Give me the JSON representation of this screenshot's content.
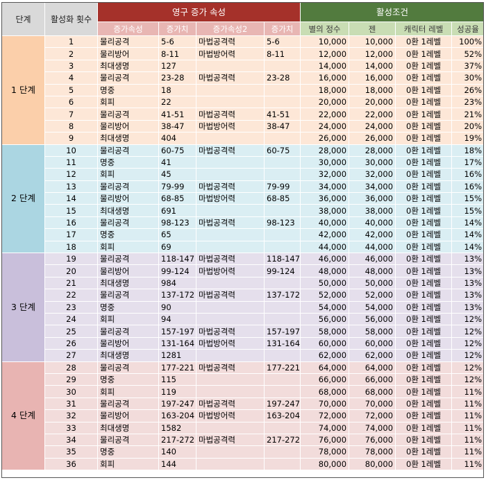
{
  "headers": {
    "stage": "단계",
    "count": "활성화 횟수",
    "group_attr": "영구 증가 속성",
    "group_cond": "활성조건",
    "attr1": "증가속성",
    "val1": "증가치",
    "attr2": "증가속성2",
    "val2": "증가치",
    "stars": "별의 정수",
    "zen": "젠",
    "level": "캐릭터 레벨",
    "rate": "성공율"
  },
  "stages": [
    "1 단계",
    "2 단계",
    "3 단계",
    "4 단계"
  ],
  "rows": [
    {
      "n": "1",
      "a1": "물리공격",
      "v1": "5-6",
      "a2": "마법공격력",
      "v2": "5-6",
      "stars": "10,000",
      "zen": "10,000",
      "level": "0환 1레벨",
      "rate": "100%"
    },
    {
      "n": "2",
      "a1": "물리방어",
      "v1": "8-11",
      "a2": "마법방어력",
      "v2": "8-11",
      "stars": "12,000",
      "zen": "12,000",
      "level": "0환 1레벨",
      "rate": "52%"
    },
    {
      "n": "3",
      "a1": "최대생명",
      "v1": "127",
      "a2": "",
      "v2": "",
      "stars": "14,000",
      "zen": "14,000",
      "level": "0환 1레벨",
      "rate": "37%"
    },
    {
      "n": "4",
      "a1": "물리공격",
      "v1": "23-28",
      "a2": "마법공격력",
      "v2": "23-28",
      "stars": "16,000",
      "zen": "16,000",
      "level": "0환 1레벨",
      "rate": "30%"
    },
    {
      "n": "5",
      "a1": "명중",
      "v1": "18",
      "a2": "",
      "v2": "",
      "stars": "18,000",
      "zen": "18,000",
      "level": "0환 1레벨",
      "rate": "26%"
    },
    {
      "n": "6",
      "a1": "회피",
      "v1": "22",
      "a2": "",
      "v2": "",
      "stars": "20,000",
      "zen": "20,000",
      "level": "0환 1레벨",
      "rate": "23%"
    },
    {
      "n": "7",
      "a1": "물리공격",
      "v1": "41-51",
      "a2": "마법공격력",
      "v2": "41-51",
      "stars": "22,000",
      "zen": "22,000",
      "level": "0환 1레벨",
      "rate": "21%"
    },
    {
      "n": "8",
      "a1": "물리방어",
      "v1": "38-47",
      "a2": "마법방어력",
      "v2": "38-47",
      "stars": "24,000",
      "zen": "24,000",
      "level": "0환 1레벨",
      "rate": "20%"
    },
    {
      "n": "9",
      "a1": "최대생명",
      "v1": "404",
      "a2": "",
      "v2": "",
      "stars": "26,000",
      "zen": "26,000",
      "level": "0환 1레벨",
      "rate": "19%"
    },
    {
      "n": "10",
      "a1": "물리공격",
      "v1": "60-75",
      "a2": "마법공격력",
      "v2": "60-75",
      "stars": "28,000",
      "zen": "28,000",
      "level": "0환 1레벨",
      "rate": "18%"
    },
    {
      "n": "11",
      "a1": "명중",
      "v1": "41",
      "a2": "",
      "v2": "",
      "stars": "30,000",
      "zen": "30,000",
      "level": "0환 1레벨",
      "rate": "17%"
    },
    {
      "n": "12",
      "a1": "회피",
      "v1": "45",
      "a2": "",
      "v2": "",
      "stars": "32,000",
      "zen": "32,000",
      "level": "0환 1레벨",
      "rate": "16%"
    },
    {
      "n": "13",
      "a1": "물리공격",
      "v1": "79-99",
      "a2": "마법공격력",
      "v2": "79-99",
      "stars": "34,000",
      "zen": "34,000",
      "level": "0환 1레벨",
      "rate": "16%"
    },
    {
      "n": "14",
      "a1": "물리방어",
      "v1": "68-85",
      "a2": "마법방어력",
      "v2": "68-85",
      "stars": "36,000",
      "zen": "36,000",
      "level": "0환 1레벨",
      "rate": "15%"
    },
    {
      "n": "15",
      "a1": "최대생명",
      "v1": "691",
      "a2": "",
      "v2": "",
      "stars": "38,000",
      "zen": "38,000",
      "level": "0환 1레벨",
      "rate": "15%"
    },
    {
      "n": "16",
      "a1": "물리공격",
      "v1": "98-123",
      "a2": "마법공격력",
      "v2": "98-123",
      "stars": "40,000",
      "zen": "40,000",
      "level": "0환 1레벨",
      "rate": "14%"
    },
    {
      "n": "17",
      "a1": "명중",
      "v1": "65",
      "a2": "",
      "v2": "",
      "stars": "42,000",
      "zen": "42,000",
      "level": "0환 1레벨",
      "rate": "14%"
    },
    {
      "n": "18",
      "a1": "회피",
      "v1": "69",
      "a2": "",
      "v2": "",
      "stars": "44,000",
      "zen": "44,000",
      "level": "0환 1레벨",
      "rate": "14%"
    },
    {
      "n": "19",
      "a1": "물리공격",
      "v1": "118-147",
      "a2": "마법공격력",
      "v2": "118-147",
      "stars": "46,000",
      "zen": "46,000",
      "level": "0환 1레벨",
      "rate": "13%"
    },
    {
      "n": "20",
      "a1": "물리방어",
      "v1": "99-124",
      "a2": "마법방어력",
      "v2": "99-124",
      "stars": "48,000",
      "zen": "48,000",
      "level": "0환 1레벨",
      "rate": "13%"
    },
    {
      "n": "21",
      "a1": "최대생명",
      "v1": "984",
      "a2": "",
      "v2": "",
      "stars": "50,000",
      "zen": "50,000",
      "level": "0환 1레벨",
      "rate": "13%"
    },
    {
      "n": "22",
      "a1": "물리공격",
      "v1": "137-172",
      "a2": "마법공격력",
      "v2": "137-172",
      "stars": "52,000",
      "zen": "52,000",
      "level": "0환 1레벨",
      "rate": "13%"
    },
    {
      "n": "23",
      "a1": "명중",
      "v1": "90",
      "a2": "",
      "v2": "",
      "stars": "54,000",
      "zen": "54,000",
      "level": "0환 1레벨",
      "rate": "13%"
    },
    {
      "n": "24",
      "a1": "회피",
      "v1": "94",
      "a2": "",
      "v2": "",
      "stars": "56,000",
      "zen": "56,000",
      "level": "0환 1레벨",
      "rate": "12%"
    },
    {
      "n": "25",
      "a1": "물리공격",
      "v1": "157-197",
      "a2": "마법공격력",
      "v2": "157-197",
      "stars": "58,000",
      "zen": "58,000",
      "level": "0환 1레벨",
      "rate": "12%"
    },
    {
      "n": "26",
      "a1": "물리방어",
      "v1": "131-164",
      "a2": "마법방어력",
      "v2": "131-164",
      "stars": "60,000",
      "zen": "60,000",
      "level": "0환 1레벨",
      "rate": "12%"
    },
    {
      "n": "27",
      "a1": "최대생명",
      "v1": "1281",
      "a2": "",
      "v2": "",
      "stars": "62,000",
      "zen": "62,000",
      "level": "0환 1레벨",
      "rate": "12%"
    },
    {
      "n": "28",
      "a1": "물리공격",
      "v1": "177-221",
      "a2": "마법공격력",
      "v2": "177-221",
      "stars": "64,000",
      "zen": "64,000",
      "level": "0환 1레벨",
      "rate": "12%"
    },
    {
      "n": "29",
      "a1": "명중",
      "v1": "115",
      "a2": "",
      "v2": "",
      "stars": "66,000",
      "zen": "66,000",
      "level": "0환 1레벨",
      "rate": "12%"
    },
    {
      "n": "30",
      "a1": "회피",
      "v1": "119",
      "a2": "",
      "v2": "",
      "stars": "68,000",
      "zen": "68,000",
      "level": "0환 1레벨",
      "rate": "11%"
    },
    {
      "n": "31",
      "a1": "물리공격",
      "v1": "197-247",
      "a2": "마법공격력",
      "v2": "197-247",
      "stars": "70,000",
      "zen": "70,000",
      "level": "0환 1레벨",
      "rate": "11%"
    },
    {
      "n": "32",
      "a1": "물리방어",
      "v1": "163-204",
      "a2": "마법방어력",
      "v2": "163-204",
      "stars": "72,000",
      "zen": "72,000",
      "level": "0환 1레벨",
      "rate": "11%"
    },
    {
      "n": "33",
      "a1": "최대생명",
      "v1": "1582",
      "a2": "",
      "v2": "",
      "stars": "74,000",
      "zen": "74,000",
      "level": "0환 1레벨",
      "rate": "11%"
    },
    {
      "n": "34",
      "a1": "물리공격",
      "v1": "217-272",
      "a2": "마법공격력",
      "v2": "217-272",
      "stars": "76,000",
      "zen": "76,000",
      "level": "0환 1레벨",
      "rate": "11%"
    },
    {
      "n": "35",
      "a1": "명중",
      "v1": "140",
      "a2": "",
      "v2": "",
      "stars": "78,000",
      "zen": "78,000",
      "level": "0환 1레벨",
      "rate": "11%"
    },
    {
      "n": "36",
      "a1": "회피",
      "v1": "144",
      "a2": "",
      "v2": "",
      "stars": "80,000",
      "zen": "80,000",
      "level": "0환 1레벨",
      "rate": "11%"
    }
  ]
}
